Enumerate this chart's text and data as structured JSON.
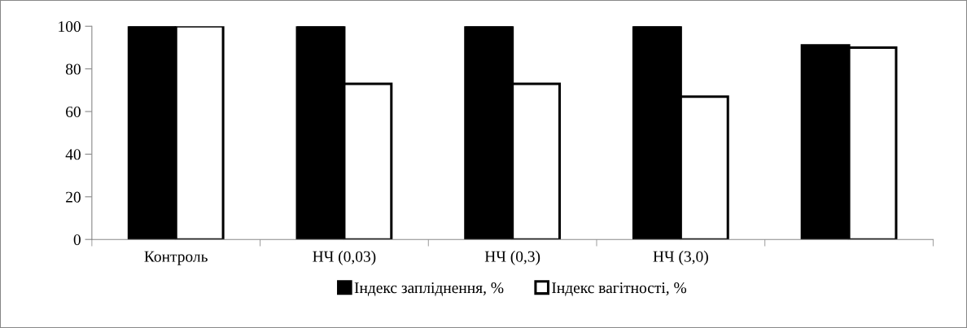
{
  "chart_data": {
    "type": "bar",
    "categories": [
      "Контроль",
      "НЧ (0,03)",
      "НЧ (0,3)",
      "НЧ (3,0)",
      null
    ],
    "series": [
      {
        "name": "Індекс запліднення, %",
        "color": "#000000",
        "values": [
          100,
          100,
          100,
          100,
          91
        ]
      },
      {
        "name": "Індекс вагітності, %",
        "color": "#ffffff",
        "values": [
          100,
          73,
          73,
          67,
          90
        ]
      }
    ],
    "ylim": [
      0,
      100
    ],
    "yticks": [
      0,
      20,
      40,
      60,
      80,
      100
    ],
    "grid": false,
    "legend": "bottom"
  }
}
